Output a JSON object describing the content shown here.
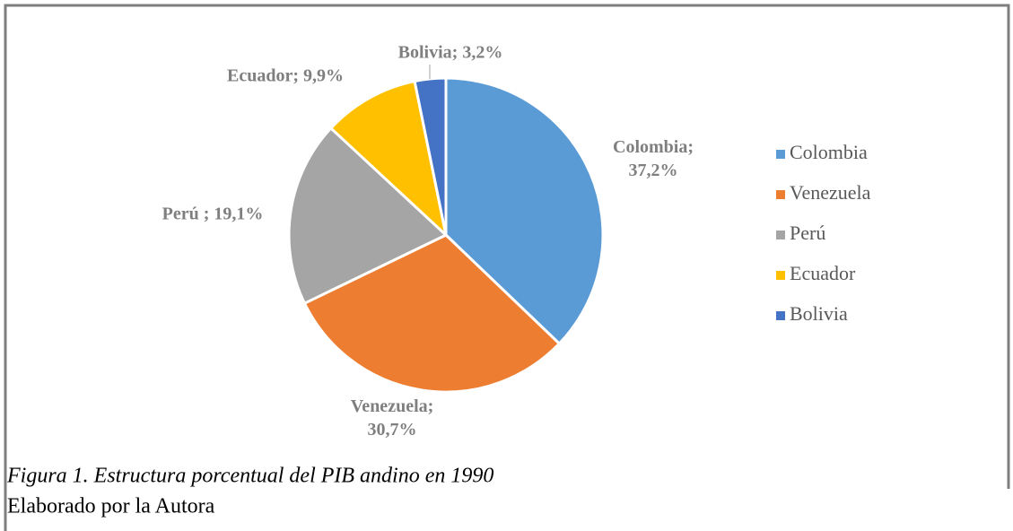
{
  "chart_data": {
    "type": "pie",
    "categories": [
      "Colombia",
      "Venezuela",
      "Perú",
      "Ecuador",
      "Bolivia"
    ],
    "values": [
      37.2,
      30.7,
      19.1,
      9.9,
      3.2
    ],
    "value_labels": [
      "Colombia; 37,2%",
      "Venezuela; 30,7%",
      "Perú ; 19,1%",
      "Ecuador; 9,9%",
      "Bolivia; 3,2%"
    ],
    "colors": [
      "#5b9bd5",
      "#ed7d31",
      "#a5a5a5",
      "#ffc000",
      "#4472c4"
    ],
    "legend": "right"
  },
  "caption": {
    "title": "Figura 1. Estructura porcentual del PIB andino en 1990",
    "note": "Elaborado por la Autora"
  }
}
